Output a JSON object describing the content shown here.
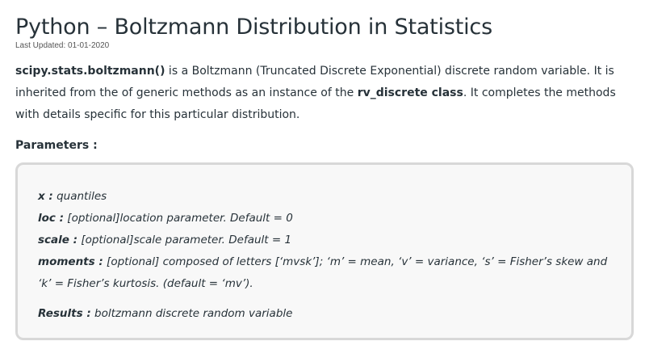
{
  "article": {
    "title": "Python – Boltzmann Distribution in Statistics",
    "last_updated": "Last Updated: 01-01-2020"
  },
  "intro": {
    "fn_name": "scipy.stats.boltzmann()",
    "text1": " is a Boltzmann (Truncated Discrete Exponential) discrete random variable. It is inherited from the of generic methods as an instance of the ",
    "class_name": "rv_discrete class",
    "text2": ". It completes the methods with details specific for this particular distribution."
  },
  "parameters": {
    "heading": "Parameters :",
    "items": [
      {
        "name": "x :",
        "desc": " quantiles"
      },
      {
        "name": "loc :",
        "desc": " [optional]location parameter. Default = 0"
      },
      {
        "name": "scale :",
        "desc": " [optional]scale parameter. Default = 1"
      },
      {
        "name": "moments :",
        "desc": " [optional] composed of letters [‘mvsk’]; ‘m’ = mean, ‘v’ = variance, ‘s’ = Fisher’s skew and ‘k’ = Fisher’s kurtosis. (default = ‘mv’)."
      }
    ],
    "results": {
      "name": "Results :",
      "desc": " boltzmann discrete random variable"
    }
  }
}
